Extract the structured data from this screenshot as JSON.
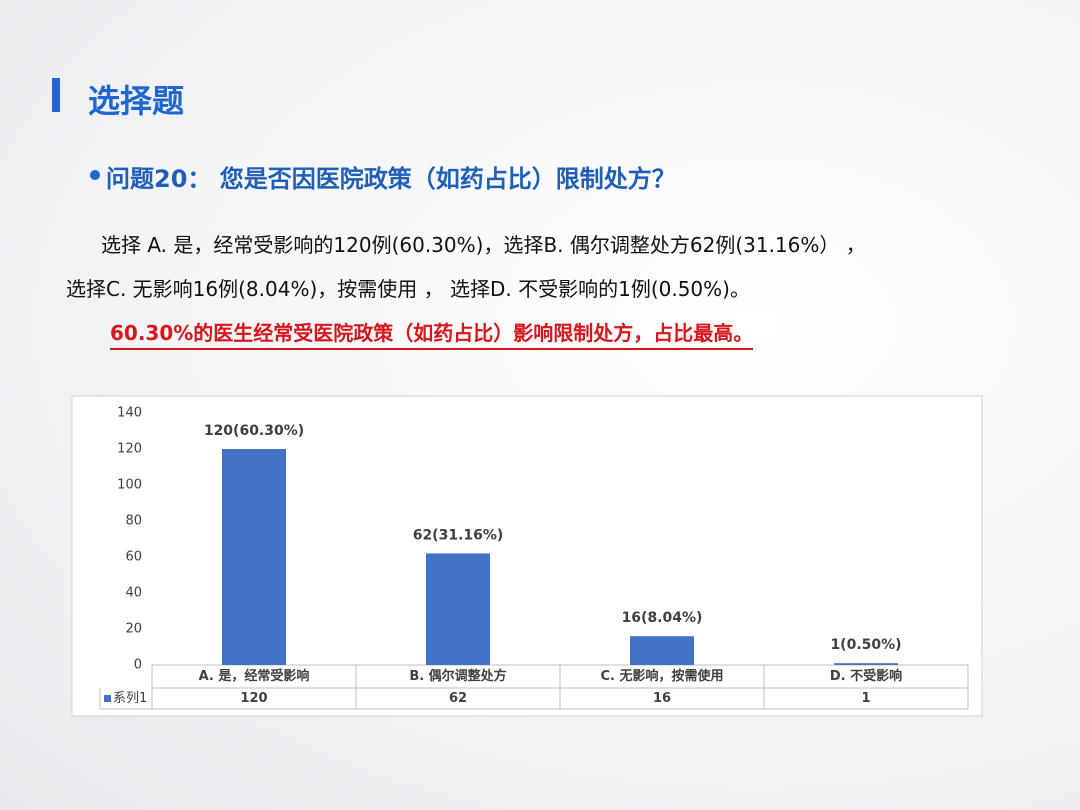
{
  "title": "选择题",
  "question": "问题20：  您是否因医院政策（如药占比）限制处方？",
  "paragraph": [
    "选择 A. 是，经常受影响的120例(60.30%)，选择B. 偶尔调整处方62例(31.16%） ，",
    "选择C. 无影响16例(8.04%)，按需使用 ， 选择D. 不受影响的1例(0.50%)。"
  ],
  "conclusion": "60.30%的医生经常受医院政策（如药占比）影响限制处方，占比最高。",
  "chart_data": {
    "type": "bar",
    "categories": [
      "A. 是，经常受影响",
      "B. 偶尔调整处方",
      "C. 无影响，按需使用",
      "D. 不受影响"
    ],
    "series": [
      {
        "name": "系列1",
        "color": "#4472c4",
        "values": [
          120,
          62,
          16,
          1
        ],
        "value_labels": [
          "120(60.30%)",
          "62(31.16%)",
          "16(8.04%)",
          "1(0.50%)"
        ]
      }
    ],
    "ylim": [
      0,
      140
    ],
    "yticks": [
      0,
      20,
      40,
      60,
      80,
      100,
      120,
      140
    ],
    "grid": false
  }
}
